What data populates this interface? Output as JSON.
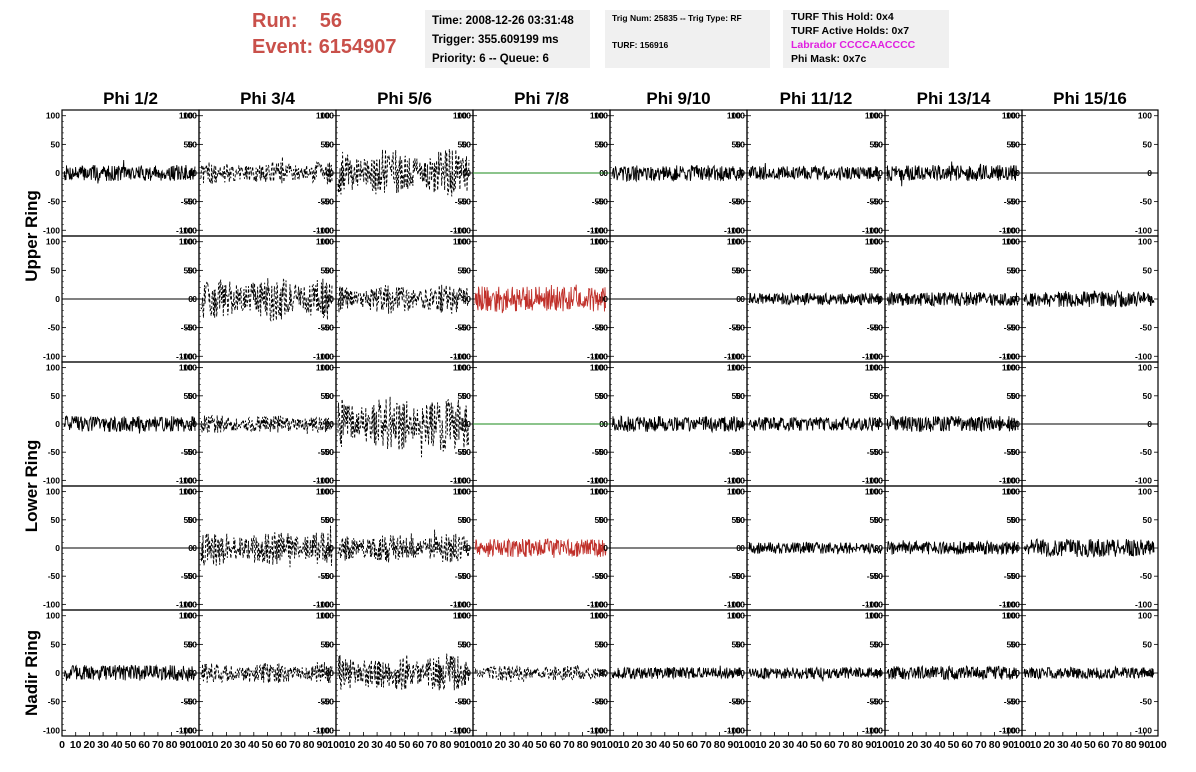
{
  "header": {
    "run_label": "Run:",
    "run_value": "56",
    "event_label": "Event:",
    "event_value": "6154907"
  },
  "info_time": {
    "time": "Time: 2008-12-26 03:31:48",
    "trigger": "Trigger: 355.609199 ms",
    "priority": "Priority: 6 -- Queue: 6"
  },
  "info_trig": {
    "trig": "Trig Num: 25835 -- Trig Type: RF",
    "turf": "TURF: 156916"
  },
  "info_turf": {
    "hold": "TURF This Hold: 0x4",
    "active": "TURF Active Holds: 0x7",
    "labrador": "Labrador CCCCAACCCC",
    "phimask": "Phi Mask: 0x7c"
  },
  "colors": {
    "solid": "#000000",
    "dashed": "#000000",
    "flat_green": "#1a8a1a",
    "red": "#c0302a",
    "labrador": "#e020e0",
    "header": "#c9504a"
  },
  "chart_data": {
    "type": "line",
    "phi_titles": [
      "Phi 1/2",
      "Phi 3/4",
      "Phi 5/6",
      "Phi 7/8",
      "Phi 9/10",
      "Phi 11/12",
      "Phi 13/14",
      "Phi 15/16"
    ],
    "ring_titles": [
      "Upper Ring",
      "Lower Ring",
      "Nadir Ring"
    ],
    "ylim": [
      -110,
      110
    ],
    "xlim": [
      0,
      100
    ],
    "y_ticks": [
      -100,
      -50,
      0,
      50,
      100
    ],
    "x_ticks": [
      0,
      10,
      20,
      30,
      40,
      50,
      60,
      70,
      80,
      90,
      100
    ],
    "xtick_labels": [
      "0",
      "10",
      "20",
      "30",
      "40",
      "50",
      "60",
      "70",
      "80",
      "90",
      "100"
    ],
    "xtick_labels_last": [
      "0",
      "10",
      "20",
      "30",
      "40",
      "50",
      "60",
      "70",
      "80",
      "90",
      "100"
    ],
    "panels": [
      [
        "solid",
        "dashed",
        "dashed",
        "flat_green",
        "solid",
        "solid",
        "solid",
        "flat"
      ],
      [
        "flat",
        "dashed",
        "dashed",
        "red",
        "flat",
        "solid",
        "solid",
        "solid"
      ],
      [
        "solid",
        "dashed",
        "dashed",
        "flat_green",
        "solid",
        "solid",
        "solid",
        "flat"
      ],
      [
        "flat",
        "dashed",
        "dashed",
        "red",
        "flat",
        "solid",
        "solid",
        "solid"
      ],
      [
        "solid",
        "dashed",
        "dashed",
        "dashed",
        "solid",
        "solid",
        "solid",
        "solid"
      ]
    ],
    "amplitudes": [
      [
        14,
        20,
        42,
        0,
        14,
        12,
        14,
        0
      ],
      [
        0,
        38,
        26,
        22,
        0,
        10,
        12,
        14
      ],
      [
        14,
        16,
        50,
        0,
        14,
        12,
        14,
        0
      ],
      [
        0,
        32,
        26,
        16,
        0,
        10,
        12,
        16
      ],
      [
        14,
        18,
        34,
        14,
        10,
        10,
        12,
        10
      ]
    ]
  }
}
